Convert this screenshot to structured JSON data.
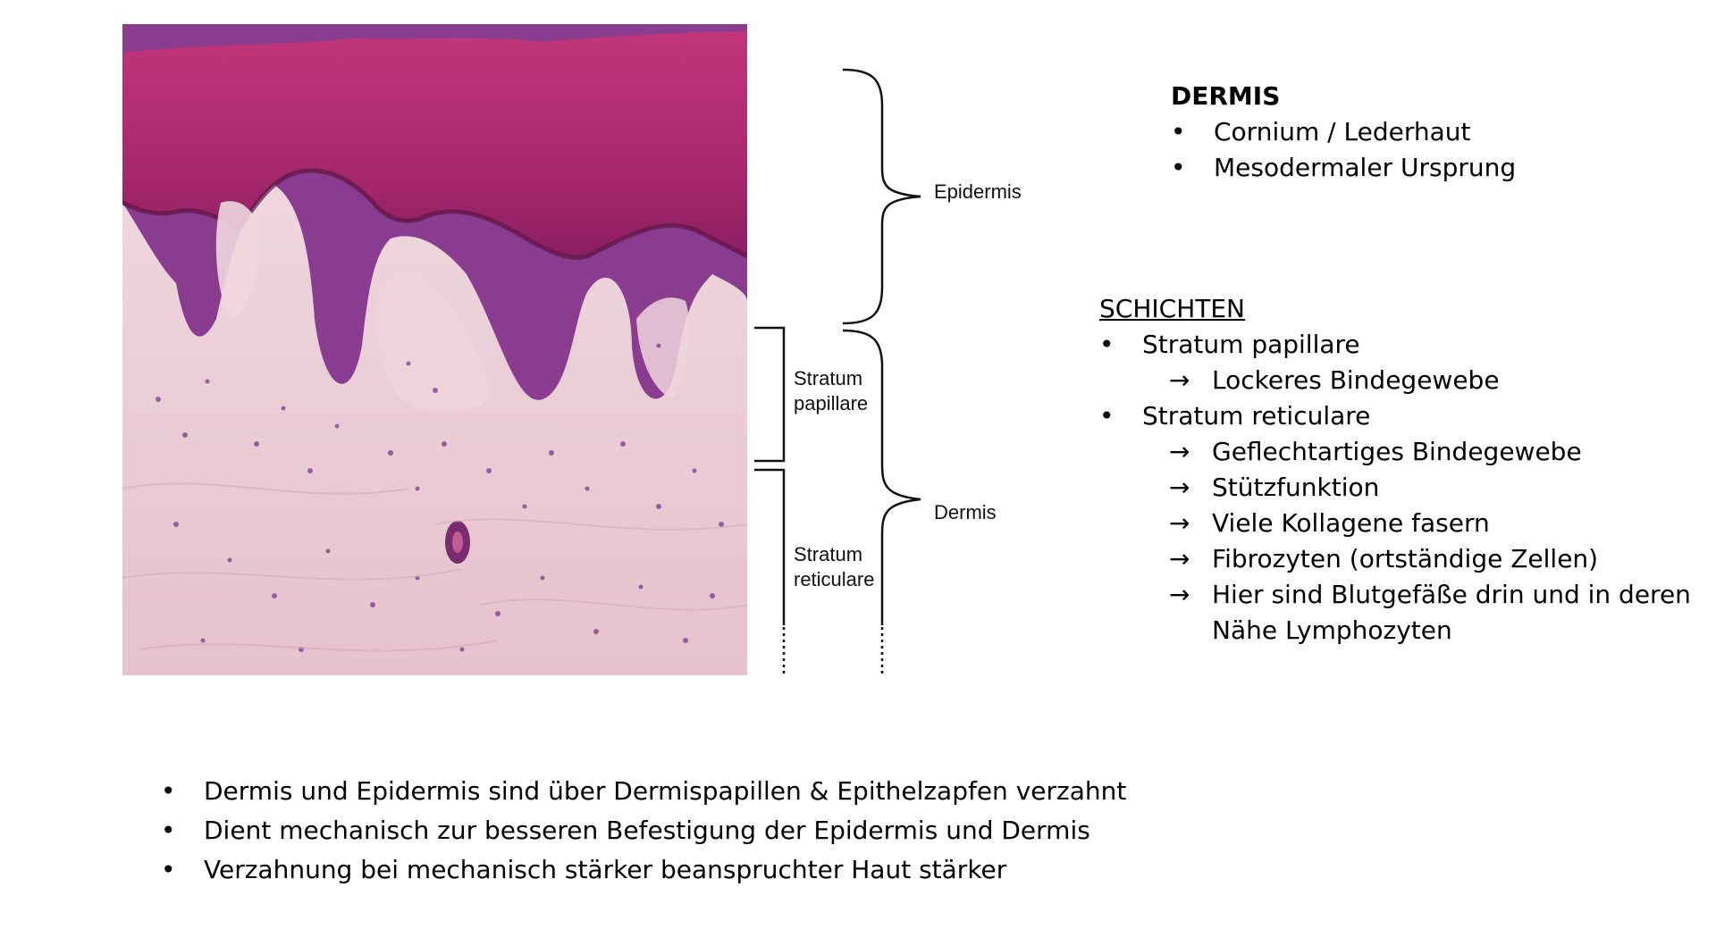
{
  "figure": {
    "labels": {
      "epidermis": "Epidermis",
      "dermis": "Dermis",
      "papillare_1": "Stratum",
      "papillare_2": "papillare",
      "reticulare_1": "Stratum",
      "reticulare_2": "reticulare"
    }
  },
  "dermis_box": {
    "title": "DERMIS",
    "bullet_symbol": "•",
    "items": [
      "Cornium / Lederhaut",
      "Mesodermaler Ursprung"
    ]
  },
  "schichten": {
    "title": "SCHICHTEN",
    "bullet_symbol": "•",
    "arrow_symbol": "→",
    "papillare": {
      "label": "Stratum papillare",
      "sub": [
        "Lockeres Bindegewebe"
      ]
    },
    "reticulare": {
      "label": "Stratum reticulare",
      "sub": [
        "Geflechtartiges Bindegewebe",
        "Stützfunktion",
        "Viele Kollagene fasern",
        "Fibrozyten (ortständige Zellen)",
        "Hier sind Blutgefäße drin und in deren",
        "Nähe Lymphozyten"
      ]
    }
  },
  "bottom": {
    "bullet_symbol": "•",
    "items": [
      "Dermis und Epidermis sind über Dermispapillen & Epithelzapfen verzahnt",
      "Dient mechanisch zur besseren Befestigung der Epidermis und Dermis",
      "Verzahnung bei mechanisch stärker beanspruchter Haut stärker"
    ]
  }
}
